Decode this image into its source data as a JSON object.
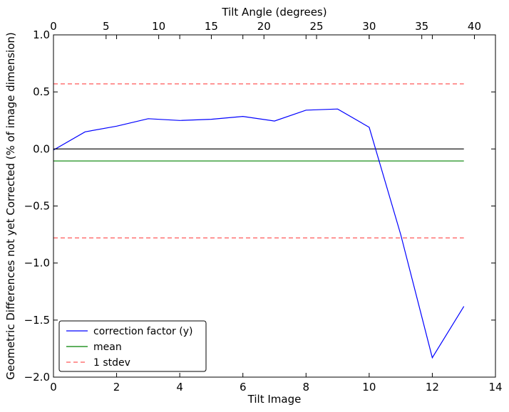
{
  "chart_data": {
    "type": "line",
    "xlabel": "Tilt Image",
    "ylabel": "Geometric Differences not yet Corrected (% of image dimension)",
    "top_xlabel": "Tilt Angle (degrees)",
    "xlim": [
      0,
      14
    ],
    "ylim": [
      -2.0,
      1.0
    ],
    "top_xlim": [
      0,
      42
    ],
    "x_ticks": [
      0,
      2,
      4,
      6,
      8,
      10,
      12,
      14
    ],
    "x_tick_labels": [
      "0",
      "2",
      "4",
      "6",
      "8",
      "10",
      "12",
      "14"
    ],
    "y_ticks": [
      1.0,
      0.5,
      0.0,
      -0.5,
      -1.0,
      -1.5,
      -2.0
    ],
    "y_tick_labels": [
      "1.0",
      "0.5",
      "0.0",
      "−0.5",
      "−1.0",
      "−1.5",
      "−2.0"
    ],
    "top_ticks": [
      0,
      5,
      10,
      15,
      20,
      25,
      30,
      35,
      40
    ],
    "top_tick_labels": [
      "0",
      "5",
      "10",
      "15",
      "20",
      "25",
      "30",
      "35",
      "40"
    ],
    "grid": false,
    "legend_position": "lower-left",
    "series": [
      {
        "name": "correction factor (y)",
        "color": "#0000ff",
        "style": "solid",
        "x": [
          0,
          1,
          2,
          3,
          4,
          5,
          6,
          7,
          8,
          9,
          10,
          11,
          12,
          13
        ],
        "y": [
          -0.01,
          0.15,
          0.2,
          0.265,
          0.25,
          0.26,
          0.285,
          0.245,
          0.34,
          0.35,
          0.19,
          -0.75,
          -1.83,
          -1.38
        ]
      },
      {
        "name": "mean",
        "color": "#008000",
        "style": "solid",
        "x": [
          0,
          13
        ],
        "y": [
          -0.105,
          -0.105
        ]
      },
      {
        "name": "1 stdev",
        "color": "#ff0000",
        "style": "dashed",
        "x": [
          0,
          13
        ],
        "y": [
          0.57,
          0.57
        ]
      }
    ],
    "extra_lines": [
      {
        "color": "#ff0000",
        "style": "dashed",
        "x": [
          0,
          13
        ],
        "y": [
          -0.78,
          -0.78
        ]
      },
      {
        "color": "#000000",
        "style": "solid",
        "x": [
          0,
          13
        ],
        "y": [
          0.0,
          0.0
        ]
      }
    ]
  }
}
